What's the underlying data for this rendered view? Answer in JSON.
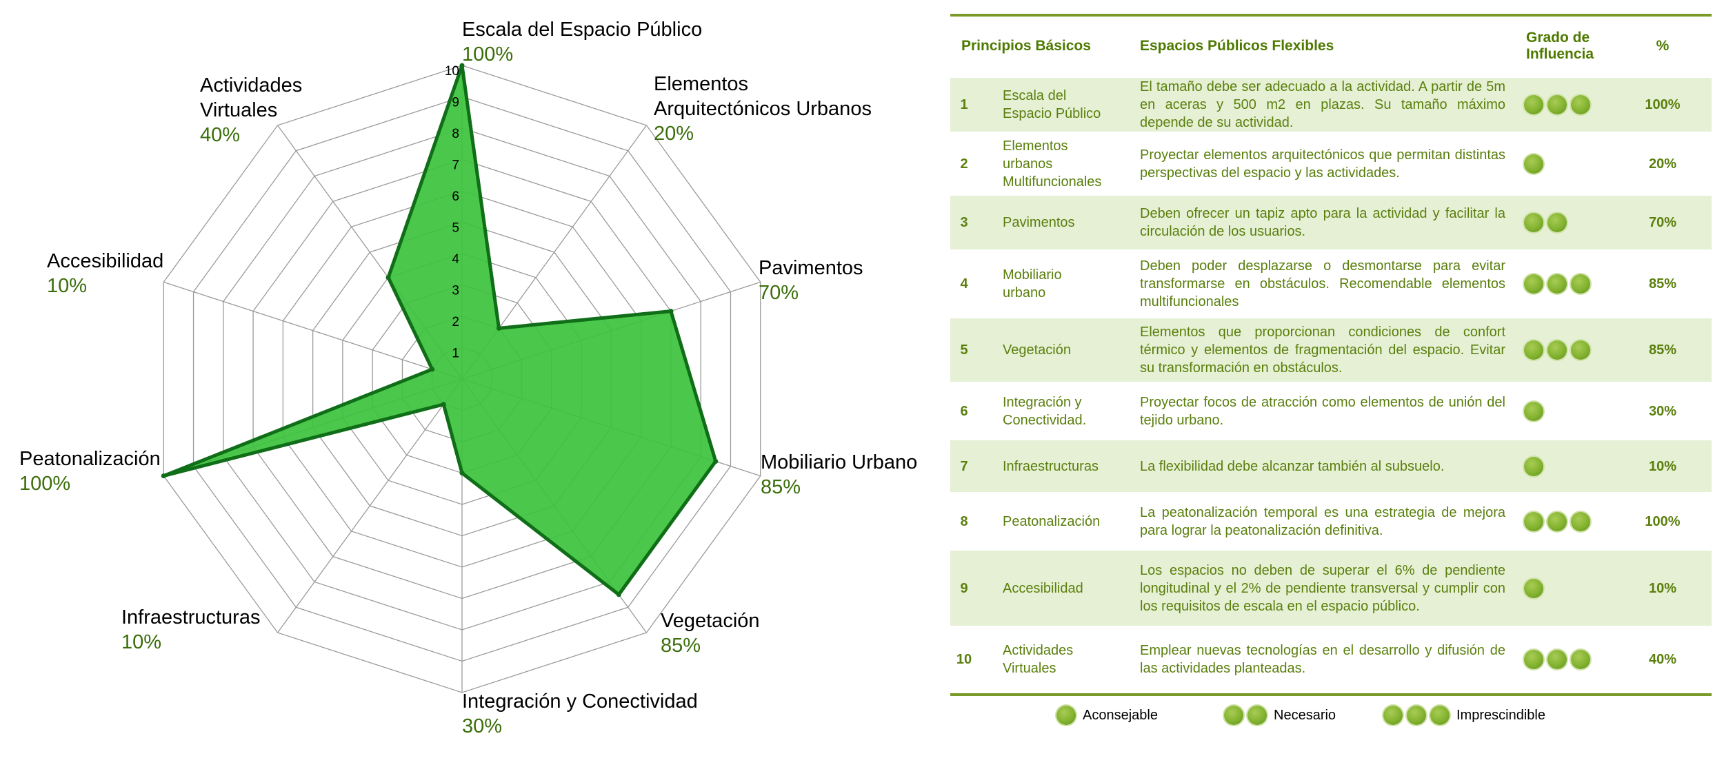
{
  "chart_data": {
    "type": "radar",
    "rmax": 10,
    "ticks": [
      "1",
      "2",
      "3",
      "4",
      "5",
      "6",
      "7",
      "8",
      "9",
      "10"
    ],
    "axes": [
      {
        "label": [
          "Escala del Espacio Público"
        ],
        "pct": "100%",
        "value": 10
      },
      {
        "label": [
          "Elementos",
          "Arquitectónicos Urbanos"
        ],
        "pct": "20%",
        "value": 2
      },
      {
        "label": [
          "Pavimentos"
        ],
        "pct": "70%",
        "value": 7
      },
      {
        "label": [
          "Mobiliario Urbano"
        ],
        "pct": "85%",
        "value": 8.5
      },
      {
        "label": [
          "Vegetación"
        ],
        "pct": "85%",
        "value": 8.5
      },
      {
        "label": [
          "Integración y Conectividad"
        ],
        "pct": "30%",
        "value": 3
      },
      {
        "label": [
          "Infraestructuras"
        ],
        "pct": "10%",
        "value": 1
      },
      {
        "label": [
          "Peatonalización"
        ],
        "pct": "100%",
        "value": 10
      },
      {
        "label": [
          "Accesibilidad"
        ],
        "pct": "10%",
        "value": 1
      },
      {
        "label": [
          "Actividades",
          "Virtuales"
        ],
        "pct": "40%",
        "value": 4
      }
    ],
    "colors": {
      "fill": "#3cc23c",
      "stroke": "#0f6e17",
      "grid": "#9a9a9a"
    },
    "grid": true
  },
  "table": {
    "headers": {
      "principles": "Principios Básicos",
      "spaces": "Espacios Públicos Flexibles",
      "influence": [
        "Grado de",
        "Influencia"
      ],
      "pct": "%"
    },
    "rows": [
      {
        "num": "1",
        "name": [
          "Escala del",
          "Espacio Público"
        ],
        "desc": "El tamaño debe ser adecuado a la actividad. A partir de 5m en aceras y 500 m2 en plazas. Su tamaño máximo depende de su actividad.",
        "dots": 3,
        "pct": "100%"
      },
      {
        "num": "2",
        "name": [
          "Elementos",
          "urbanos",
          "Multifuncionales"
        ],
        "desc": "Proyectar elementos arquitectónicos que permitan distintas perspectivas del espacio y las actividades.",
        "dots": 1,
        "pct": "20%"
      },
      {
        "num": "3",
        "name": [
          "Pavimentos"
        ],
        "desc": "Deben ofrecer un tapiz apto para la actividad y facilitar la circulación de los usuarios.",
        "dots": 2,
        "pct": "70%"
      },
      {
        "num": "4",
        "name": [
          "Mobiliario",
          "urbano"
        ],
        "desc": "Deben poder desplazarse o desmontarse para evitar transformarse en obstáculos. Recomendable elementos multifuncionales",
        "dots": 3,
        "pct": "85%"
      },
      {
        "num": "5",
        "name": [
          "Vegetación"
        ],
        "desc": "Elementos que proporcionan condiciones de confort térmico y elementos de fragmentación del espacio. Evitar su transformación en obstáculos.",
        "dots": 3,
        "pct": "85%"
      },
      {
        "num": "6",
        "name": [
          "Integración y",
          "Conectividad."
        ],
        "desc": "Proyectar focos de atracción como elementos de unión del tejido urbano.",
        "dots": 1,
        "pct": "30%"
      },
      {
        "num": "7",
        "name": [
          "Infraestructuras"
        ],
        "desc": "La flexibilidad debe alcanzar también al subsuelo.",
        "dots": 1,
        "pct": "10%"
      },
      {
        "num": "8",
        "name": [
          "Peatonalización"
        ],
        "desc": "La peatonalización temporal es una estrategia de mejora para lograr la peatonalización definitiva.",
        "dots": 3,
        "pct": "100%"
      },
      {
        "num": "9",
        "name": [
          "Accesibilidad"
        ],
        "desc": "Los espacios no deben de superar el 6% de pendiente longitudinal y el 2% de pendiente transversal y cumplir con los requisitos de escala en el espacio público.",
        "dots": 1,
        "pct": "10%"
      },
      {
        "num": "10",
        "name": [
          "Actividades",
          "Virtuales"
        ],
        "desc": "Emplear nuevas tecnologías en el desarrollo y difusión de las actividades planteadas.",
        "dots": 3,
        "pct": "40%"
      }
    ],
    "legend": [
      {
        "dots": 1,
        "label": "Aconsejable"
      },
      {
        "dots": 2,
        "label": "Necesario"
      },
      {
        "dots": 3,
        "label": "Imprescindible"
      }
    ],
    "colors": {
      "text": "#5a7f0d",
      "shade": "#e6f0d4",
      "rule": "#7a9a2a",
      "dot": "#82b22f"
    }
  }
}
